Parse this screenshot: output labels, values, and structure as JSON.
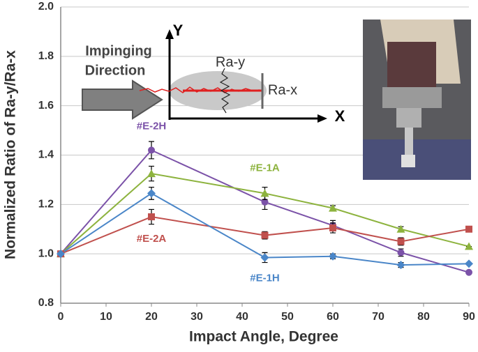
{
  "chart_data": {
    "type": "line",
    "xlabel": "Impact Angle, Degree",
    "ylabel": "Normalized Ratio of Ra-y/Ra-x",
    "x": [
      0,
      20,
      45,
      60,
      75,
      90
    ],
    "xlim": [
      0,
      90
    ],
    "xticks": [
      0,
      10,
      20,
      30,
      40,
      50,
      60,
      70,
      80,
      90
    ],
    "ylim": [
      0.8,
      2.0
    ],
    "yticks": [
      0.8,
      {
        "value": 1.0,
        "label": "1.0"
      },
      1.2,
      1.4,
      1.6,
      1.8,
      {
        "value": 2.0,
        "label": "2.0"
      }
    ],
    "grid": true,
    "series": [
      {
        "name": "#E-2H",
        "color": "#7b52a8",
        "marker": "circle",
        "values": [
          1.0,
          1.42,
          1.21,
          1.115,
          1.005,
          0.925
        ],
        "errors": [
          0,
          0.035,
          0.03,
          0.02,
          0.015,
          0
        ]
      },
      {
        "name": "#E-1A",
        "color": "#8db33e",
        "marker": "triangle",
        "values": [
          1.0,
          1.325,
          1.245,
          1.185,
          1.1,
          1.03
        ],
        "errors": [
          0,
          0.03,
          0.025,
          0.01,
          0.01,
          0
        ]
      },
      {
        "name": "#E-2A",
        "color": "#c0504d",
        "marker": "square",
        "values": [
          1.0,
          1.15,
          1.075,
          1.105,
          1.05,
          1.1
        ],
        "errors": [
          0,
          0.03,
          0.015,
          0.02,
          0.015,
          0
        ]
      },
      {
        "name": "#E-1H",
        "color": "#4a86c8",
        "marker": "diamond",
        "values": [
          1.0,
          1.245,
          0.985,
          0.99,
          0.955,
          0.96
        ],
        "errors": [
          0,
          0.025,
          0.02,
          0.01,
          0.01,
          0
        ]
      }
    ],
    "inset": {
      "arrow_label": [
        "Impinging",
        "Direction"
      ],
      "y_axis": "Y",
      "x_axis": "X",
      "ra_y": "Ra-y",
      "ra_x": "Ra-x"
    }
  }
}
